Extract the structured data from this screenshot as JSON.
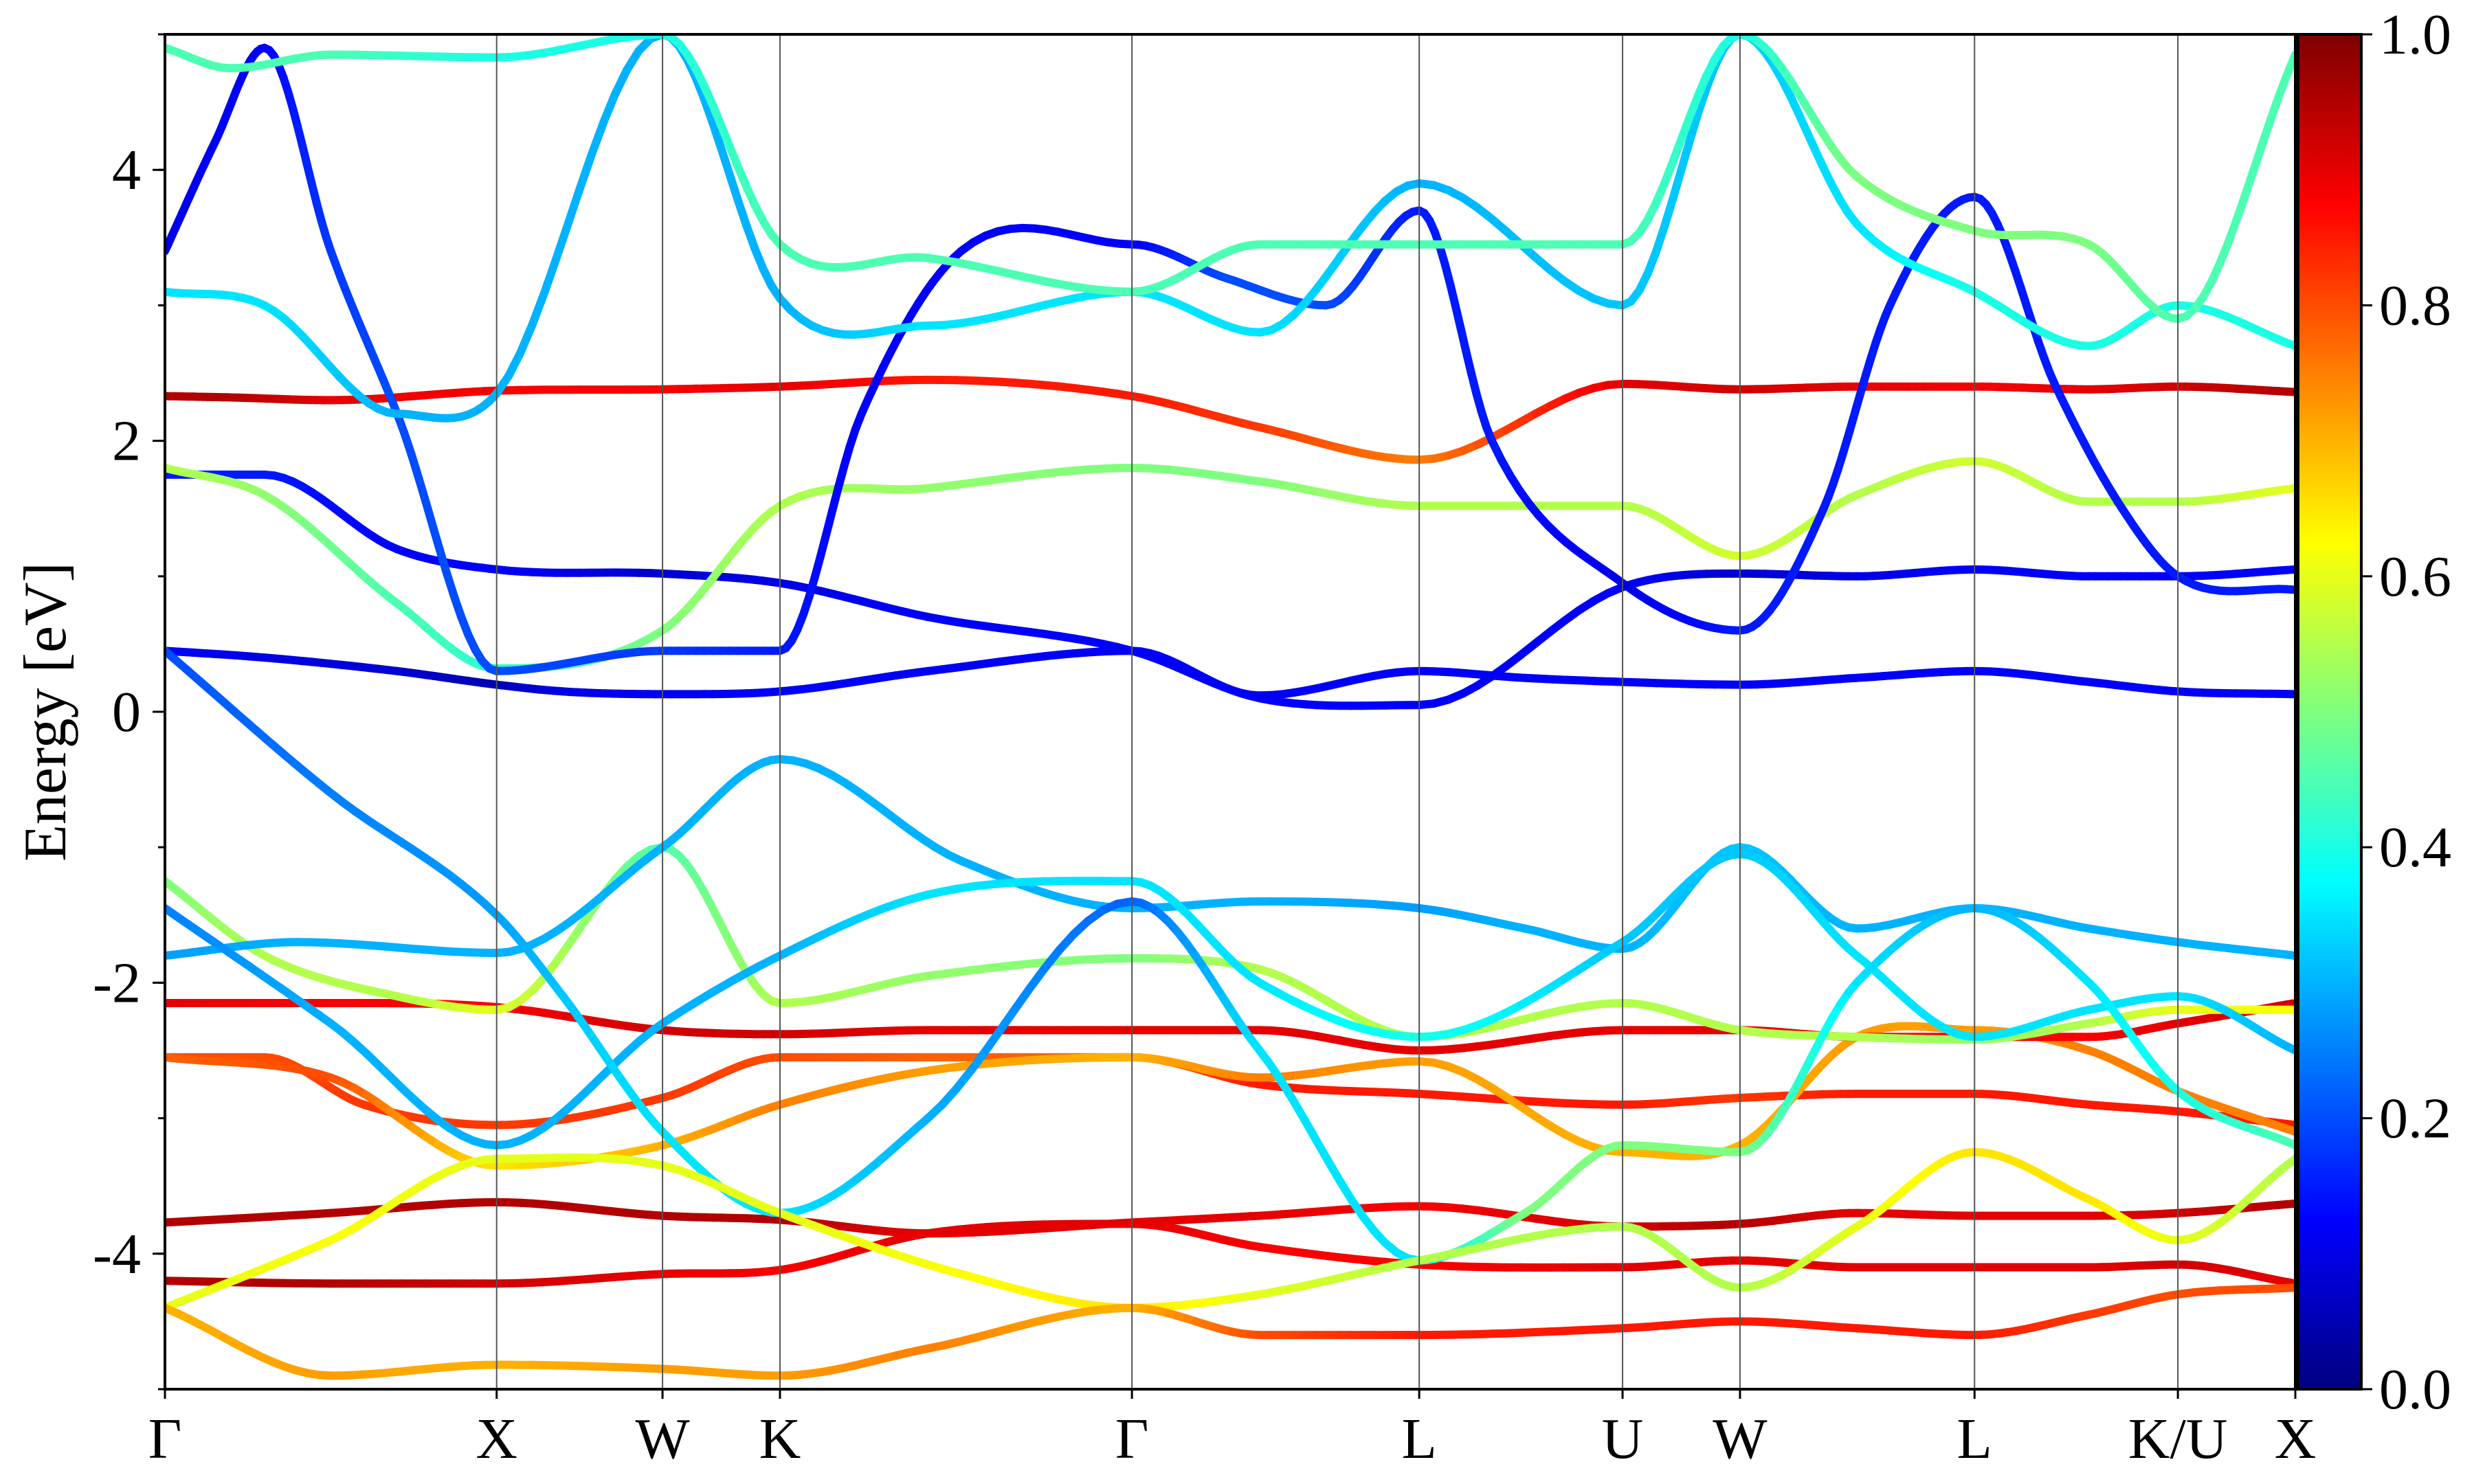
{
  "chart_data": {
    "type": "line",
    "title": "",
    "xlabel": "",
    "ylabel": "Energy [eV]",
    "ylim": [
      -5,
      5
    ],
    "y_ticks": [
      "-4",
      "-2",
      "0",
      "2",
      "4"
    ],
    "y_tick_values": [
      -4,
      -2,
      0,
      2,
      4
    ],
    "k_path_labels": [
      "Γ",
      "X",
      "W",
      "K",
      "Γ",
      "L",
      "U",
      "W",
      "L",
      "K/U",
      "X"
    ],
    "k_path_positions": [
      0,
      1.0,
      1.5,
      1.854,
      2.915,
      3.781,
      4.394,
      4.748,
      5.455,
      6.068,
      6.422
    ],
    "grid": "vertical lines at high-symmetry points",
    "colorbar": {
      "colormap": "jet",
      "range": [
        0.0,
        1.0
      ],
      "tick_labels": [
        "0.0",
        "0.2",
        "0.4",
        "0.6",
        "0.8",
        "1.0"
      ],
      "tick_values": [
        0.0,
        0.2,
        0.4,
        0.6,
        0.8,
        1.0
      ],
      "colors": [
        "#00007f",
        "#0000ff",
        "#007fff",
        "#00ffff",
        "#7fff7f",
        "#ffff00",
        "#ff7f00",
        "#ff0000",
        "#7f0000"
      ]
    },
    "series": [
      {
        "x": [
          0,
          0.2,
          0.5,
          1.0,
          1.5,
          1.854,
          2.3,
          2.915,
          3.3,
          3.781,
          4.394,
          4.748,
          5.1,
          5.455,
          5.8,
          6.068,
          6.422
        ],
        "y": [
          2.33,
          2.32,
          2.3,
          2.37,
          2.38,
          2.4,
          2.45,
          2.33,
          2.1,
          1.86,
          2.42,
          2.38,
          2.4,
          2.4,
          2.38,
          2.4,
          2.36
        ],
        "w": [
          0.95,
          0.95,
          0.9,
          0.88,
          0.88,
          0.9,
          0.85,
          0.85,
          0.82,
          0.75,
          0.9,
          0.92,
          0.9,
          0.88,
          0.9,
          0.92,
          0.95
        ]
      },
      {
        "x": [
          0,
          0.3,
          0.6,
          1.0,
          1.5,
          1.854,
          2.3,
          2.915,
          3.3,
          3.781,
          4.394,
          4.748,
          5.1,
          5.455,
          5.8,
          6.068,
          6.422
        ],
        "y": [
          -2.55,
          -2.55,
          -2.9,
          -3.05,
          -2.85,
          -2.55,
          -2.55,
          -2.55,
          -2.75,
          -2.82,
          -2.9,
          -2.85,
          -2.82,
          -2.82,
          -2.9,
          -2.95,
          -3.05
        ],
        "w": [
          0.8,
          0.8,
          0.82,
          0.82,
          0.82,
          0.8,
          0.78,
          0.78,
          0.85,
          0.85,
          0.85,
          0.82,
          0.85,
          0.85,
          0.85,
          0.85,
          0.85
        ]
      },
      {
        "x": [
          0,
          0.5,
          1.0,
          1.5,
          1.854,
          2.3,
          2.915,
          3.3,
          3.781,
          4.394,
          4.748,
          5.1,
          5.455,
          5.8,
          6.068,
          6.422
        ],
        "y": [
          -3.77,
          -3.7,
          -3.62,
          -3.72,
          -3.75,
          -3.85,
          -3.77,
          -3.72,
          -3.65,
          -3.8,
          -3.78,
          -3.7,
          -3.72,
          -3.72,
          -3.7,
          -3.63
        ],
        "w": [
          0.95,
          0.95,
          0.95,
          0.95,
          0.95,
          0.9,
          0.9,
          0.9,
          0.88,
          0.92,
          0.95,
          0.9,
          0.9,
          0.9,
          0.92,
          0.95
        ]
      },
      {
        "x": [
          0,
          0.5,
          1.0,
          1.5,
          1.854,
          2.3,
          2.915,
          3.3,
          3.781,
          4.394,
          4.748,
          5.1,
          5.455,
          5.8,
          6.068,
          6.422
        ],
        "y": [
          -4.2,
          -4.22,
          -4.22,
          -4.15,
          -4.12,
          -3.85,
          -3.78,
          -3.95,
          -4.08,
          -4.1,
          -4.05,
          -4.1,
          -4.1,
          -4.1,
          -4.08,
          -4.22
        ],
        "w": [
          0.95,
          0.95,
          0.92,
          0.9,
          0.88,
          0.9,
          0.9,
          0.88,
          0.88,
          0.9,
          0.9,
          0.9,
          0.9,
          0.9,
          0.92,
          0.9
        ]
      },
      {
        "x": [
          0,
          0.5,
          1.0,
          1.5,
          1.854,
          2.3,
          2.915,
          3.3,
          3.781,
          4.394,
          4.748,
          5.1,
          5.455,
          5.8,
          6.068,
          6.422
        ],
        "y": [
          -2.55,
          -2.7,
          -3.35,
          -3.2,
          -2.9,
          -2.65,
          -2.55,
          -2.7,
          -2.58,
          -3.25,
          -3.2,
          -2.4,
          -2.35,
          -2.5,
          -2.8,
          -3.1
        ],
        "w": [
          0.78,
          0.8,
          0.65,
          0.7,
          0.75,
          0.72,
          0.7,
          0.75,
          0.72,
          0.7,
          0.7,
          0.72,
          0.72,
          0.75,
          0.75,
          0.75
        ]
      },
      {
        "x": [
          0,
          0.5,
          1.0,
          1.5,
          1.854,
          2.3,
          2.915,
          3.3,
          3.781,
          4.394,
          4.748,
          5.1,
          5.455,
          5.8,
          6.068,
          6.422
        ],
        "y": [
          -2.15,
          -2.15,
          -2.18,
          -2.35,
          -2.38,
          -2.35,
          -2.35,
          -2.35,
          -2.5,
          -2.35,
          -2.35,
          -2.4,
          -2.4,
          -2.4,
          -2.3,
          -2.15
        ],
        "w": [
          0.9,
          0.88,
          0.88,
          0.92,
          0.92,
          0.9,
          0.9,
          0.9,
          0.9,
          0.9,
          0.9,
          0.88,
          0.88,
          0.88,
          0.9,
          0.92
        ]
      },
      {
        "x": [
          0,
          0.3,
          0.7,
          1.0,
          1.2,
          1.5,
          1.854,
          2.3,
          2.915,
          3.3,
          3.781,
          4.1,
          4.394,
          4.748,
          5.1,
          5.455,
          5.8,
          6.068,
          6.422
        ],
        "y": [
          0.45,
          0.4,
          0.3,
          0.2,
          0.15,
          0.13,
          0.15,
          0.3,
          0.45,
          0.12,
          0.3,
          0.25,
          0.22,
          0.2,
          0.25,
          0.3,
          0.22,
          0.15,
          0.13
        ],
        "w": [
          0.12,
          0.1,
          0.08,
          0.05,
          0.1,
          0.12,
          0.12,
          0.12,
          0.12,
          0.12,
          0.12,
          0.12,
          0.12,
          0.12,
          0.12,
          0.12,
          0.12,
          0.12,
          0.12
        ]
      },
      {
        "x": [
          0,
          0.3,
          0.7,
          1.0,
          1.5,
          1.854,
          2.3,
          2.915,
          3.3,
          3.781,
          4.394,
          4.748,
          5.1,
          5.455,
          5.8,
          6.068,
          6.422
        ],
        "y": [
          1.75,
          1.75,
          1.2,
          1.05,
          1.02,
          0.95,
          0.7,
          0.45,
          0.1,
          0.05,
          0.92,
          1.02,
          1.0,
          1.05,
          1.0,
          1.0,
          1.05
        ],
        "w": [
          0.15,
          0.15,
          0.12,
          0.12,
          0.08,
          0.1,
          0.12,
          0.12,
          0.12,
          0.12,
          0.12,
          0.08,
          0.1,
          0.12,
          0.12,
          0.12,
          0.12
        ]
      },
      {
        "x": [
          0,
          0.3,
          0.7,
          1.0,
          1.5,
          1.854,
          2.3,
          2.915,
          3.3,
          3.781,
          4.394,
          4.748,
          5.1,
          5.455,
          5.8,
          6.068,
          6.422
        ],
        "y": [
          1.8,
          1.6,
          0.8,
          0.32,
          0.6,
          1.52,
          1.65,
          1.8,
          1.7,
          1.52,
          1.52,
          1.15,
          1.6,
          1.85,
          1.55,
          1.55,
          1.65
        ],
        "w": [
          0.55,
          0.52,
          0.45,
          0.42,
          0.5,
          0.55,
          0.52,
          0.5,
          0.5,
          0.55,
          0.55,
          0.58,
          0.55,
          0.58,
          0.55,
          0.55,
          0.6
        ]
      },
      {
        "x": [
          0,
          0.3,
          0.7,
          1.0,
          1.5,
          1.854,
          2.3,
          2.915,
          3.3,
          3.781,
          4.394,
          4.748,
          5.1,
          5.455,
          5.8,
          6.068,
          6.422
        ],
        "y": [
          -1.25,
          -1.8,
          -2.1,
          -2.2,
          -1.0,
          -2.15,
          -1.95,
          -1.82,
          -1.9,
          -2.4,
          -2.15,
          -2.35,
          -2.4,
          -2.42,
          -2.3,
          -2.2,
          -2.2
        ],
        "w": [
          0.5,
          0.55,
          0.55,
          0.6,
          0.45,
          0.55,
          0.52,
          0.5,
          0.55,
          0.55,
          0.55,
          0.55,
          0.55,
          0.52,
          0.55,
          0.6,
          0.62
        ]
      },
      {
        "x": [
          0,
          0.4,
          1.0,
          1.5,
          1.854,
          2.4,
          2.915,
          3.3,
          3.781,
          4.1,
          4.394,
          4.748,
          5.1,
          5.455,
          5.8,
          6.068,
          6.422
        ],
        "y": [
          -1.8,
          -1.7,
          -1.78,
          -1.0,
          -0.35,
          -1.1,
          -1.45,
          -1.4,
          -1.45,
          -1.6,
          -1.75,
          -1.0,
          -1.6,
          -1.45,
          -1.6,
          -1.7,
          -1.8
        ],
        "w": [
          0.28,
          0.3,
          0.3,
          0.3,
          0.3,
          0.3,
          0.3,
          0.3,
          0.28,
          0.3,
          0.3,
          0.32,
          0.3,
          0.3,
          0.3,
          0.3,
          0.3
        ]
      },
      {
        "x": [
          0,
          0.5,
          1.0,
          1.5,
          1.854,
          2.3,
          2.915,
          3.3,
          3.781,
          4.394,
          4.748,
          5.1,
          5.455,
          5.8,
          6.068,
          6.422
        ],
        "y": [
          -1.45,
          -2.3,
          -3.2,
          -2.3,
          -1.8,
          -1.35,
          -1.25,
          -2.0,
          -2.4,
          -1.7,
          -1.05,
          -1.8,
          -2.4,
          -2.2,
          -2.1,
          -2.5
        ],
        "w": [
          0.25,
          0.3,
          0.3,
          0.3,
          0.3,
          0.35,
          0.35,
          0.35,
          0.4,
          0.32,
          0.32,
          0.35,
          0.35,
          0.35,
          0.35,
          0.3
        ]
      },
      {
        "x": [
          0,
          0.5,
          1.0,
          1.2,
          1.5,
          1.854,
          2.3,
          2.915,
          3.3,
          3.781,
          4.1,
          4.394,
          4.748,
          5.1,
          5.455,
          5.8,
          6.068,
          6.422
        ],
        "y": [
          0.45,
          -0.6,
          -1.5,
          -2.1,
          -3.1,
          -3.7,
          -3.0,
          -1.4,
          -2.5,
          -4.05,
          -3.7,
          -3.2,
          -3.25,
          -2.0,
          -1.45,
          -2.0,
          -2.8,
          -3.2
        ],
        "w": [
          0.2,
          0.25,
          0.28,
          0.32,
          0.35,
          0.35,
          0.3,
          0.22,
          0.35,
          0.35,
          0.5,
          0.5,
          0.5,
          0.35,
          0.3,
          0.35,
          0.4,
          0.45
        ]
      },
      {
        "x": [
          0,
          0.5,
          1.0,
          1.5,
          1.854,
          2.4,
          2.915,
          3.3,
          3.781,
          4.394,
          4.748,
          5.1,
          5.455,
          5.8,
          6.068,
          6.422
        ],
        "y": [
          -4.4,
          -3.9,
          -3.3,
          -3.35,
          -3.7,
          -4.15,
          -4.4,
          -4.3,
          -4.05,
          -3.8,
          -4.25,
          -3.8,
          -3.25,
          -3.6,
          -3.9,
          -3.3
        ],
        "w": [
          0.6,
          0.62,
          0.6,
          0.6,
          0.6,
          0.62,
          0.65,
          0.6,
          0.55,
          0.55,
          0.55,
          0.6,
          0.65,
          0.65,
          0.6,
          0.55
        ]
      },
      {
        "x": [
          0,
          0.5,
          1.0,
          1.5,
          1.854,
          2.3,
          2.915,
          3.3,
          3.781,
          4.394,
          4.748,
          5.1,
          5.455,
          5.8,
          6.068,
          6.422
        ],
        "y": [
          -4.4,
          -4.9,
          -4.82,
          -4.85,
          -4.9,
          -4.7,
          -4.4,
          -4.6,
          -4.6,
          -4.55,
          -4.5,
          -4.55,
          -4.6,
          -4.45,
          -4.3,
          -4.25
        ],
        "w": [
          0.7,
          0.72,
          0.7,
          0.72,
          0.72,
          0.75,
          0.7,
          0.8,
          0.85,
          0.85,
          0.85,
          0.85,
          0.85,
          0.82,
          0.8,
          0.8
        ]
      },
      {
        "x": [
          0,
          0.15,
          0.3,
          0.5,
          0.7,
          1.0,
          1.5,
          1.854,
          2.1,
          2.4,
          2.915,
          3.2,
          3.5,
          3.781,
          4.0,
          4.394,
          4.748,
          5.0,
          5.2,
          5.455,
          5.7,
          5.9,
          6.068,
          6.422
        ],
        "y": [
          3.4,
          4.2,
          4.9,
          3.4,
          2.2,
          0.3,
          0.45,
          0.45,
          2.2,
          3.4,
          3.45,
          3.2,
          3.0,
          3.7,
          2.0,
          0.95,
          0.6,
          1.5,
          3.0,
          3.8,
          2.4,
          1.5,
          1.0,
          0.9
        ],
        "w": [
          0.1,
          0.12,
          0.12,
          0.18,
          0.2,
          0.2,
          0.18,
          0.15,
          0.12,
          0.12,
          0.12,
          0.2,
          0.2,
          0.15,
          0.15,
          0.1,
          0.15,
          0.15,
          0.15,
          0.15,
          0.15,
          0.15,
          0.15,
          0.15
        ]
      },
      {
        "x": [
          0,
          0.3,
          0.7,
          1.0,
          1.5,
          1.854,
          2.3,
          2.915,
          3.3,
          3.781,
          4.394,
          4.748,
          5.1,
          5.455,
          5.8,
          6.068,
          6.422
        ],
        "y": [
          3.1,
          3.0,
          2.2,
          2.35,
          5.0,
          3.05,
          2.85,
          3.1,
          2.8,
          3.9,
          3.0,
          5.0,
          3.6,
          3.1,
          2.7,
          3.0,
          2.7
        ],
        "w": [
          0.35,
          0.35,
          0.3,
          0.3,
          0.3,
          0.3,
          0.35,
          0.35,
          0.35,
          0.3,
          0.32,
          0.32,
          0.35,
          0.4,
          0.4,
          0.4,
          0.4
        ]
      },
      {
        "x": [
          0,
          0.2,
          0.5,
          1.0,
          1.5,
          1.854,
          2.3,
          2.915,
          3.3,
          3.781,
          4.394,
          4.748,
          5.1,
          5.455,
          5.8,
          6.068,
          6.422
        ],
        "y": [
          4.9,
          4.75,
          4.85,
          4.83,
          5.0,
          3.45,
          3.35,
          3.1,
          3.45,
          3.45,
          3.45,
          5.0,
          3.95,
          3.55,
          3.45,
          2.9,
          4.85
        ],
        "w": [
          0.45,
          0.45,
          0.45,
          0.4,
          0.4,
          0.45,
          0.45,
          0.45,
          0.45,
          0.45,
          0.45,
          0.4,
          0.5,
          0.5,
          0.5,
          0.45,
          0.45
        ]
      }
    ]
  }
}
